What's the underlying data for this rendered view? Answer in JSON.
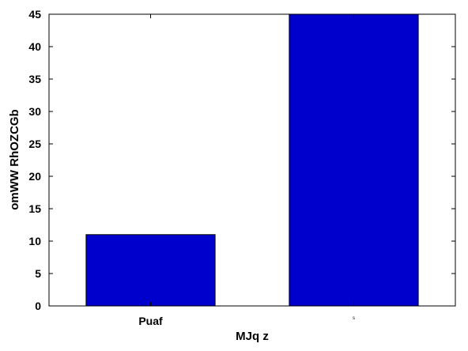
{
  "chart_data": {
    "type": "bar",
    "categories": [
      "Puaf",
      "s"
    ],
    "values": [
      11,
      45
    ],
    "xlabel": "MJq z",
    "ylabel": "omWW RhOZCGb",
    "ylim": [
      0,
      45
    ],
    "yticks": [
      0,
      5,
      10,
      15,
      20,
      25,
      30,
      35,
      40,
      45
    ],
    "grid": false,
    "bar_color": "#0000cc"
  }
}
